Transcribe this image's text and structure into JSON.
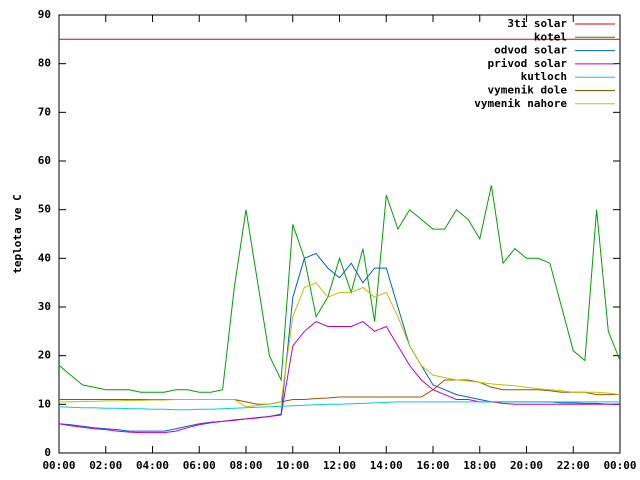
{
  "chart_data": {
    "type": "line",
    "ylabel": "teplota ve C",
    "x": [
      0,
      0.5,
      1,
      1.5,
      2,
      2.5,
      3,
      3.5,
      4,
      4.5,
      5,
      5.5,
      6,
      6.5,
      7,
      7.5,
      8,
      8.5,
      9,
      9.5,
      10,
      10.5,
      11,
      11.5,
      12,
      12.5,
      13,
      13.5,
      14,
      14.5,
      15,
      15.5,
      16,
      16.5,
      17,
      17.5,
      18,
      18.5,
      19,
      19.5,
      20,
      20.5,
      21,
      21.5,
      22,
      22.5,
      23,
      23.5,
      24
    ],
    "xlim": [
      0,
      24
    ],
    "xticks": [
      {
        "value": 0,
        "label": "00:00"
      },
      {
        "value": 2,
        "label": "02:00"
      },
      {
        "value": 4,
        "label": "04:00"
      },
      {
        "value": 6,
        "label": "06:00"
      },
      {
        "value": 8,
        "label": "08:00"
      },
      {
        "value": 10,
        "label": "10:00"
      },
      {
        "value": 12,
        "label": "12:00"
      },
      {
        "value": 14,
        "label": "14:00"
      },
      {
        "value": 16,
        "label": "16:00"
      },
      {
        "value": 18,
        "label": "18:00"
      },
      {
        "value": 20,
        "label": "20:00"
      },
      {
        "value": 22,
        "label": "22:00"
      },
      {
        "value": 24,
        "label": "00:00"
      }
    ],
    "ylim": [
      0,
      90
    ],
    "yticks": [
      0,
      10,
      20,
      30,
      40,
      50,
      60,
      70,
      80,
      90
    ],
    "legend": "top-right",
    "series": [
      {
        "name": "3ti solar",
        "color": "#e00000",
        "values": [
          85,
          85,
          85,
          85,
          85,
          85,
          85,
          85,
          85,
          85,
          85,
          85,
          85,
          85,
          85,
          85,
          85,
          85,
          85,
          85,
          85,
          85,
          85,
          85,
          85,
          85,
          85,
          85,
          85,
          85,
          85,
          85,
          85,
          85,
          85,
          85,
          85,
          85,
          85,
          85,
          85,
          85,
          85,
          85,
          85,
          85,
          85,
          85,
          85
        ]
      },
      {
        "name": "kotel",
        "color": "#00a000",
        "values": [
          18,
          16,
          14,
          13.5,
          13,
          13,
          13,
          12.5,
          12.5,
          12.5,
          13,
          13,
          12.5,
          12.5,
          13,
          34,
          50,
          35,
          20,
          15,
          47,
          40,
          28,
          32,
          40,
          33,
          42,
          27,
          53,
          46,
          50,
          48,
          46,
          46,
          50,
          48,
          44,
          55,
          39,
          42,
          40,
          40,
          39,
          30,
          21,
          19,
          50,
          25,
          19
        ]
      },
      {
        "name": "odvod solar",
        "color": "#0060d0",
        "values": [
          6,
          5.8,
          5.5,
          5.2,
          5,
          4.8,
          4.5,
          4.5,
          4.5,
          4.5,
          5,
          5.5,
          6,
          6.3,
          6.5,
          6.8,
          7,
          7.3,
          7.5,
          8,
          32,
          40,
          41,
          38,
          36,
          39,
          35,
          38,
          38,
          30,
          22,
          18,
          14,
          13,
          12,
          11.5,
          11,
          10.5,
          10.5,
          10.5,
          10.5,
          10.5,
          10.5,
          10.3,
          10.3,
          10.2,
          10.2,
          10,
          10
        ]
      },
      {
        "name": "privod solar",
        "color": "#c000c0",
        "values": [
          6,
          5.6,
          5.3,
          5,
          4.8,
          4.5,
          4.3,
          4.2,
          4.2,
          4.2,
          4.5,
          5.2,
          5.8,
          6.2,
          6.5,
          6.7,
          7,
          7.2,
          7.5,
          7.8,
          22,
          25,
          27,
          26,
          26,
          26,
          27,
          25,
          26,
          22,
          18,
          15,
          13,
          12,
          11,
          11,
          10.5,
          10.5,
          10.2,
          10,
          10,
          10,
          10,
          10,
          10,
          10,
          10,
          10,
          10
        ]
      },
      {
        "name": "kutloch",
        "color": "#00d0d0",
        "values": [
          9.5,
          9.4,
          9.3,
          9.3,
          9.2,
          9.2,
          9.1,
          9.1,
          9,
          9,
          8.9,
          8.9,
          9,
          9,
          9.1,
          9.2,
          9.3,
          9.4,
          9.5,
          9.6,
          9.7,
          9.8,
          9.9,
          10,
          10,
          10.1,
          10.2,
          10.3,
          10.4,
          10.5,
          10.5,
          10.5,
          10.5,
          10.5,
          10.5,
          10.5,
          10.5,
          10.5,
          10.5,
          10.5,
          10.5,
          10.5,
          10.5,
          10.5,
          10.5,
          10.5,
          10.5,
          10.5,
          10.5
        ]
      },
      {
        "name": "vymenik dole",
        "color": "#a05000",
        "values": [
          11,
          11,
          11,
          11,
          11,
          11,
          11,
          11,
          11,
          11,
          11,
          11,
          11,
          11,
          11,
          11,
          10.5,
          10,
          10,
          10.5,
          11,
          11,
          11.2,
          11.3,
          11.5,
          11.5,
          11.5,
          11.5,
          11.5,
          11.5,
          11.5,
          11.5,
          13,
          15,
          15,
          15,
          14.5,
          13.5,
          13,
          13,
          13,
          13,
          12.8,
          12.5,
          12.5,
          12.5,
          12,
          12,
          12
        ]
      },
      {
        "name": "vymenik nahore",
        "color": "#c0c000",
        "values": [
          10.5,
          10.5,
          10.6,
          10.6,
          10.7,
          10.7,
          10.8,
          10.8,
          10.9,
          10.9,
          11,
          11,
          11,
          11,
          11,
          11,
          9.5,
          9.8,
          10,
          10.5,
          28,
          34,
          35,
          32,
          33,
          33,
          34,
          32,
          33,
          28,
          22,
          18,
          16,
          15.5,
          15,
          14.8,
          14.5,
          14.2,
          14,
          13.8,
          13.5,
          13.2,
          13,
          12.8,
          12.5,
          12.5,
          12.5,
          12.3,
          12
        ]
      }
    ]
  }
}
